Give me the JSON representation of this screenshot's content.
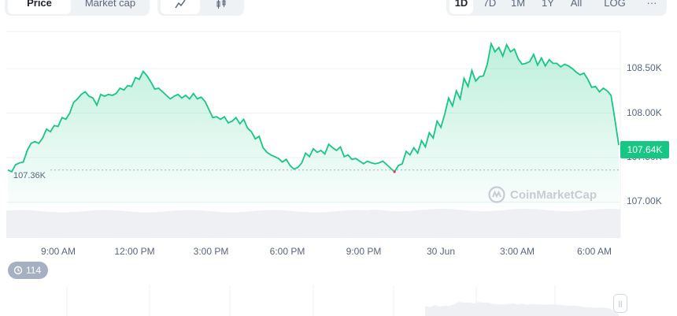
{
  "tabs": {
    "price": "Price",
    "market_cap": "Market cap"
  },
  "chart_type_toggle": {
    "line_icon": "line-chart-icon",
    "candle_icon": "candlestick-icon"
  },
  "ranges": {
    "d1": "1D",
    "d7": "7D",
    "m1": "1M",
    "y1": "1Y",
    "all": "All",
    "log": "LOG",
    "more": "···"
  },
  "current_price_label": "107.64K",
  "reference_label": "107.36K",
  "watermark": "CoinMarketCap",
  "history_count": "114",
  "handle_glyph": "||",
  "colors": {
    "up": "#16c784",
    "down": "#ea3943",
    "text_muted": "#58667e"
  },
  "chart_data": {
    "type": "area",
    "x_ticks": [
      "9:00 AM",
      "12:00 PM",
      "3:00 PM",
      "6:00 PM",
      "9:00 PM",
      "30 Jun",
      "3:00 AM",
      "6:00 AM"
    ],
    "y_ticks": [
      "108.50K",
      "108.00K",
      "107.50K",
      "107.00K"
    ],
    "ylim": [
      106.95,
      108.9
    ],
    "reference_value": 107.36,
    "current_value": 107.64,
    "series": [
      {
        "values": [
          107.36,
          107.34,
          107.42,
          107.44,
          107.45,
          107.58,
          107.66,
          107.68,
          107.66,
          107.72,
          107.82,
          107.79,
          107.86,
          107.85,
          107.95,
          107.93,
          108.0,
          108.12,
          108.16,
          108.21,
          108.24,
          108.19,
          108.17,
          108.09,
          108.21,
          108.19,
          108.21,
          108.2,
          108.22,
          108.28,
          108.26,
          108.31,
          108.3,
          108.4,
          108.38,
          108.47,
          108.42,
          108.35,
          108.27,
          108.28,
          108.24,
          108.2,
          108.16,
          108.19,
          108.21,
          108.17,
          108.2,
          108.16,
          108.22,
          108.16,
          108.18,
          108.13,
          108.04,
          107.95,
          107.96,
          107.93,
          107.96,
          107.89,
          107.91,
          107.95,
          107.88,
          107.93,
          107.83,
          107.79,
          107.71,
          107.74,
          107.61,
          107.56,
          107.53,
          107.51,
          107.49,
          107.45,
          107.48,
          107.41,
          107.37,
          107.39,
          107.44,
          107.55,
          107.51,
          107.6,
          107.56,
          107.58,
          107.54,
          107.65,
          107.61,
          107.58,
          107.62,
          107.51,
          107.53,
          107.48,
          107.49,
          107.46,
          107.43,
          107.46,
          107.44,
          107.43,
          107.44,
          107.46,
          107.42,
          107.38,
          107.34,
          107.41,
          107.43,
          107.57,
          107.53,
          107.61,
          107.55,
          107.69,
          107.62,
          107.78,
          107.72,
          107.91,
          107.84,
          107.99,
          108.17,
          108.08,
          108.25,
          108.16,
          108.39,
          108.3,
          108.48,
          108.36,
          108.41,
          108.42,
          108.55,
          108.78,
          108.69,
          108.74,
          108.64,
          108.77,
          108.69,
          108.72,
          108.61,
          108.55,
          108.56,
          108.58,
          108.66,
          108.54,
          108.62,
          108.53,
          108.6,
          108.56,
          108.56,
          108.52,
          108.55,
          108.53,
          108.5,
          108.46,
          108.43,
          108.45,
          108.38,
          108.29,
          108.3,
          108.24,
          108.28,
          108.25,
          108.2,
          107.93,
          107.64
        ]
      }
    ]
  }
}
